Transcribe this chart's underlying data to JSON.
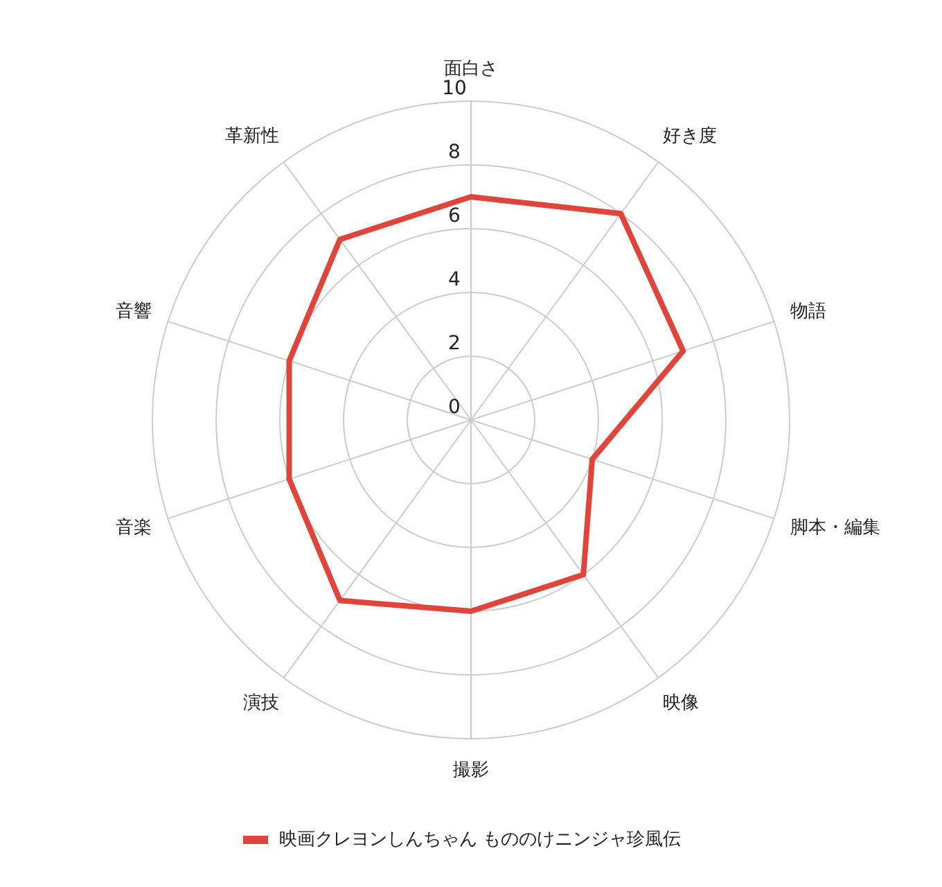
{
  "chart_data": {
    "type": "radar",
    "categories": [
      "面白さ",
      "好き度",
      "物語",
      "脚本・編集",
      "映像",
      "撮影",
      "演技",
      "音楽",
      "音響",
      "革新性"
    ],
    "series": [
      {
        "name": "映画クレヨンしんちゃん もののけニンジャ珍風伝",
        "color": "#e0443a",
        "values": [
          7,
          8,
          7,
          4,
          6,
          6,
          7,
          6,
          6,
          7
        ]
      }
    ],
    "ylim": [
      0,
      10
    ],
    "yticks": [
      0,
      2,
      4,
      6,
      8,
      10
    ],
    "grid": true,
    "legend": "bottom"
  }
}
